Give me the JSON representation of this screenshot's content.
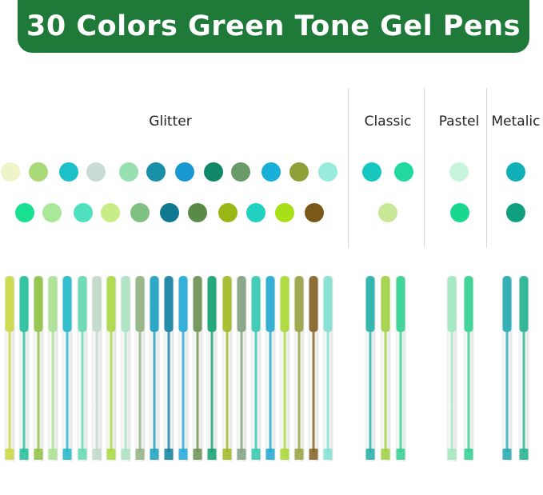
{
  "title": "30 Colors Green Tone Gel Pens",
  "banner_color": "#1f7a3a",
  "groups": [
    {
      "label": "Glitter",
      "swatches_row1": [
        "#eef3c8",
        "#a8d878",
        "#1cc0c8",
        "#c8dcd4",
        "#98e0b0",
        "#1890a8",
        "#1898d0",
        "#108868",
        "#6a9a68",
        "#18b0d8",
        "#90a038",
        "#98ecdc"
      ],
      "swatches_row2": [
        "#18e090",
        "#a8e898",
        "#50e0c0",
        "#c8ec88",
        "#80c080",
        "#107890",
        "#5a8a48",
        "#98b818",
        "#20d0c0",
        "#a8e018",
        "#7a5818"
      ],
      "pens": [
        "#c8d840",
        "#1fbf9a",
        "#8fc040",
        "#a8e090",
        "#20b8c8",
        "#60d8b0",
        "#c0d8c8",
        "#a8d840",
        "#a8e0c0",
        "#90b080",
        "#1aa0c0",
        "#1080a0",
        "#20a8d8",
        "#6a9050",
        "#10a070",
        "#a0b820",
        "#80a080",
        "#30c8b0",
        "#20a8d0",
        "#a8d830",
        "#98a040",
        "#806020",
        "#80e0d0"
      ]
    },
    {
      "label": "Classic",
      "swatches_row1": [
        "#18c8c0",
        "#20d8a0"
      ],
      "swatches_row2": [
        "#c8e898"
      ],
      "pens": [
        "#20b0a8",
        "#a0d040",
        "#30d090"
      ]
    },
    {
      "label": "Pastel",
      "swatches_row1": [
        "#c8f4dc"
      ],
      "swatches_row2": [
        "#18d890"
      ],
      "pens": [
        "#a0e8c0",
        "#30d090"
      ]
    },
    {
      "label": "Metalic",
      "swatches_row1": [
        "#10b0b8"
      ],
      "swatches_row2": [
        "#10a080"
      ],
      "pens": [
        "#20a8b0",
        "#20b090"
      ]
    }
  ]
}
